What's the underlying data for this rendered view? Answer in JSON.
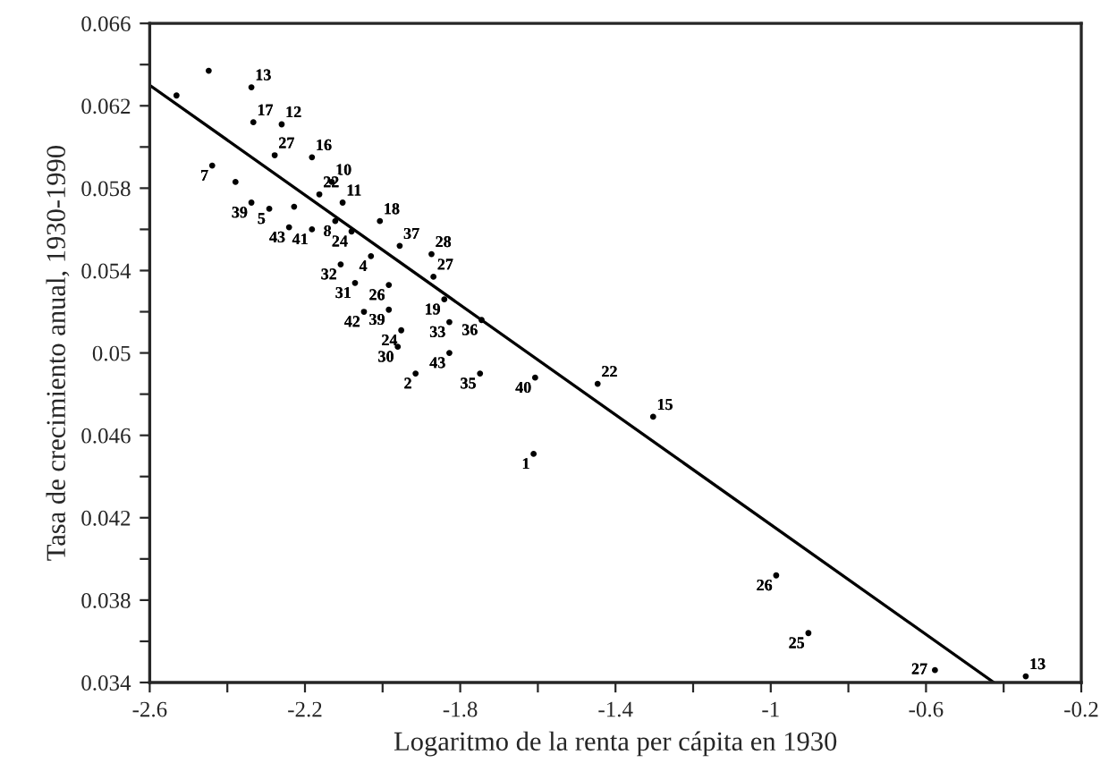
{
  "chart_data": {
    "type": "scatter",
    "xlabel": "Logaritmo de la renta per cápita en 1930",
    "ylabel": "Tasa de crecimiento anual, 1930-1990",
    "xlim": [
      -2.6,
      -0.2
    ],
    "xticks": [
      -2.6,
      {
        "value": -2.4,
        "label": null
      },
      -2.2,
      {
        "value": -2.0,
        "label": null
      },
      -1.8,
      {
        "value": -1.6,
        "label": null
      },
      -1.4,
      {
        "value": -1.2,
        "label": null
      },
      -1,
      {
        "value": -0.8,
        "label": null
      },
      -0.6,
      {
        "value": -0.4,
        "label": null
      },
      -0.2
    ],
    "ylim": [
      0.034,
      0.066
    ],
    "yticks": [
      0.034,
      {
        "value": 0.036,
        "label": null
      },
      0.038,
      {
        "value": 0.04,
        "label": null
      },
      0.042,
      {
        "value": 0.044,
        "label": null
      },
      0.046,
      {
        "value": 0.048,
        "label": null
      },
      0.05,
      {
        "value": 0.052,
        "label": null
      },
      0.054,
      {
        "value": 0.056,
        "label": null
      },
      0.058,
      {
        "value": 0.06,
        "label": null
      },
      0.062,
      {
        "value": 0.064,
        "label": null
      },
      0.066
    ],
    "grid": false,
    "series": [
      {
        "marker": "circle",
        "color": "#000000",
        "x": [
          -2.448,
          -2.338,
          -2.531,
          -2.333,
          -2.26,
          -2.439,
          -2.278,
          -2.182,
          -2.379,
          -2.131,
          -2.338,
          -2.292,
          -2.228,
          -2.163,
          -2.103,
          -2.241,
          -2.182,
          -2.122,
          -2.007,
          -2.08,
          -1.956,
          -2.03,
          -1.874,
          -2.108,
          -2.071,
          -1.984,
          -1.869,
          -1.841,
          -2.048,
          -1.984,
          -1.952,
          -1.961,
          -1.828,
          -1.828,
          -1.915,
          -1.745,
          -1.749,
          -1.607,
          -1.446,
          -1.303,
          -1.611,
          -0.986,
          -0.903,
          -0.577,
          -0.343
        ],
        "values": [
          0.0637,
          0.0629,
          0.0625,
          0.0612,
          0.0611,
          0.0591,
          0.0596,
          0.0595,
          0.0583,
          0.0583,
          0.0573,
          0.057,
          0.0571,
          0.0577,
          0.0573,
          0.0561,
          0.056,
          0.0564,
          0.0564,
          0.0559,
          0.0552,
          0.0547,
          0.0548,
          0.0543,
          0.0534,
          0.0533,
          0.0537,
          0.0526,
          0.052,
          0.0521,
          0.0511,
          0.0503,
          0.0515,
          0.05,
          0.049,
          0.0516,
          0.049,
          0.0488,
          0.0485,
          0.0469,
          0.0451,
          0.0392,
          0.0364,
          0.0346,
          0.0343
        ]
      },
      {
        "type": "line",
        "color": "#000000",
        "line_style": "solid",
        "marker": "none",
        "x": [
          -2.6,
          -0.425
        ],
        "values": [
          0.063,
          0.034
        ]
      }
    ],
    "annotations": [
      {
        "text": "13",
        "x": -2.338,
        "y": 0.0629
      },
      {
        "text": "17",
        "x": -2.333,
        "y": 0.0612
      },
      {
        "text": "12",
        "x": -2.26,
        "y": 0.0611
      },
      {
        "text": "7",
        "x": -2.439,
        "y": 0.0591
      },
      {
        "text": "27",
        "x": -2.278,
        "y": 0.0596
      },
      {
        "text": "16",
        "x": -2.182,
        "y": 0.0595
      },
      {
        "text": "10",
        "x": -2.131,
        "y": 0.0583
      },
      {
        "text": "39",
        "x": -2.338,
        "y": 0.0573
      },
      {
        "text": "5",
        "x": -2.292,
        "y": 0.057
      },
      {
        "text": "22",
        "x": -2.163,
        "y": 0.0577
      },
      {
        "text": "11",
        "x": -2.103,
        "y": 0.0573
      },
      {
        "text": "43",
        "x": -2.241,
        "y": 0.0561
      },
      {
        "text": "41",
        "x": -2.182,
        "y": 0.056
      },
      {
        "text": "8",
        "x": -2.122,
        "y": 0.0564
      },
      {
        "text": "18",
        "x": -2.007,
        "y": 0.0564
      },
      {
        "text": "24",
        "x": -2.08,
        "y": 0.0559
      },
      {
        "text": "37",
        "x": -1.956,
        "y": 0.0552
      },
      {
        "text": "4",
        "x": -2.03,
        "y": 0.0547
      },
      {
        "text": "28",
        "x": -1.874,
        "y": 0.0548
      },
      {
        "text": "32",
        "x": -2.108,
        "y": 0.0543
      },
      {
        "text": "31",
        "x": -2.071,
        "y": 0.0534
      },
      {
        "text": "26",
        "x": -1.984,
        "y": 0.0533
      },
      {
        "text": "27",
        "x": -1.869,
        "y": 0.0537
      },
      {
        "text": "19",
        "x": -1.841,
        "y": 0.0526
      },
      {
        "text": "42",
        "x": -2.048,
        "y": 0.052
      },
      {
        "text": "39",
        "x": -1.984,
        "y": 0.0521
      },
      {
        "text": "24",
        "x": -1.952,
        "y": 0.0511
      },
      {
        "text": "30",
        "x": -1.961,
        "y": 0.0503
      },
      {
        "text": "33",
        "x": -1.828,
        "y": 0.0515
      },
      {
        "text": "43",
        "x": -1.828,
        "y": 0.05
      },
      {
        "text": "2",
        "x": -1.915,
        "y": 0.049
      },
      {
        "text": "36",
        "x": -1.745,
        "y": 0.0516
      },
      {
        "text": "35",
        "x": -1.749,
        "y": 0.049
      },
      {
        "text": "40",
        "x": -1.607,
        "y": 0.0488
      },
      {
        "text": "22",
        "x": -1.446,
        "y": 0.0485
      },
      {
        "text": "15",
        "x": -1.303,
        "y": 0.0469
      },
      {
        "text": "1",
        "x": -1.611,
        "y": 0.0451
      },
      {
        "text": "26",
        "x": -0.986,
        "y": 0.0392
      },
      {
        "text": "25",
        "x": -0.903,
        "y": 0.0364
      },
      {
        "text": "27",
        "x": -0.577,
        "y": 0.0346
      },
      {
        "text": "13",
        "x": -0.343,
        "y": 0.0343
      }
    ]
  }
}
